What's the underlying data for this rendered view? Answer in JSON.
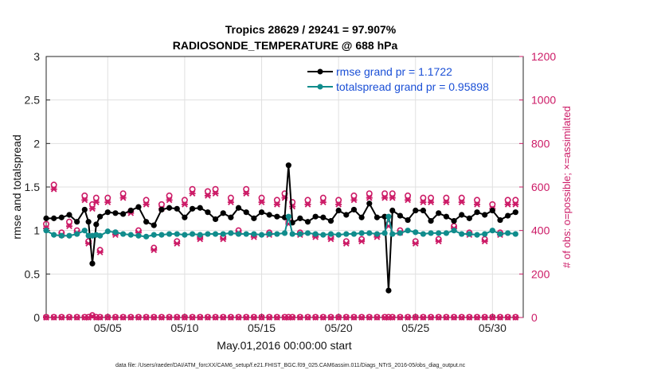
{
  "chart_data": {
    "type": "line",
    "title": "Tropics 28629 / 29241 = 97.907%",
    "subtitle": "RADIOSONDE_TEMPERATURE @ 688 hPa",
    "xlabel": "May.01,2016 00:00:00 start",
    "ylabel_left": "rmse and totalspread",
    "ylabel_right": "# of obs: o=possible; ×=assimilated",
    "xlim": [
      1,
      32
    ],
    "ylim_left": [
      0,
      3
    ],
    "ylim_right": [
      0,
      1200
    ],
    "x_ticks": [
      5,
      10,
      15,
      20,
      25,
      30
    ],
    "x_tick_labels": [
      "05/05",
      "05/10",
      "05/15",
      "05/20",
      "05/25",
      "05/30"
    ],
    "y_left_ticks": [
      0,
      0.5,
      1,
      1.5,
      2,
      2.5,
      3
    ],
    "y_left_tick_labels": [
      "0",
      "0.5",
      "1",
      "1.5",
      "2",
      "2.5",
      "3"
    ],
    "y_right_ticks": [
      0,
      200,
      400,
      600,
      800,
      1000,
      1200
    ],
    "y_right_tick_labels": [
      "0",
      "200",
      "400",
      "600",
      "800",
      "1000",
      "1200"
    ],
    "grid": true,
    "legend": {
      "placement": "top-right",
      "entries": [
        "rmse grand pr = 1.1722",
        "totalspread grand pr = 0.95898"
      ]
    },
    "colors": {
      "rmse": "#000000",
      "spread": "#108c8c",
      "obs": "#cc1a66",
      "grid": "#e0e0e0"
    },
    "footnote": "data file: /Users/raeder/DAI/ATM_forcXX/CAM6_setup/f.e21.FHIST_BGC.f09_025.CAM6assim.011/Diags_NTrS_2016-05/obs_diag_output.nc",
    "series": [
      {
        "name": "rmse grand pr = 1.1722",
        "axis": "left",
        "color": "#000000",
        "marker": "circle",
        "x": [
          1.0,
          1.5,
          2.0,
          2.5,
          3.0,
          3.5,
          3.75,
          4.0,
          4.25,
          4.5,
          5.0,
          5.5,
          6.0,
          6.5,
          7.0,
          7.5,
          8.0,
          8.5,
          9.0,
          9.5,
          10.0,
          10.5,
          11.0,
          11.5,
          12.0,
          12.5,
          13.0,
          13.5,
          14.0,
          14.5,
          15.0,
          15.5,
          16.0,
          16.5,
          16.75,
          17.0,
          17.5,
          18.0,
          18.5,
          19.0,
          19.5,
          20.0,
          20.5,
          21.0,
          21.5,
          22.0,
          22.5,
          23.0,
          23.25,
          23.5,
          24.0,
          24.5,
          25.0,
          25.5,
          26.0,
          26.5,
          27.0,
          27.5,
          28.0,
          28.5,
          29.0,
          29.5,
          30.0,
          30.5,
          31.0,
          31.5
        ],
        "values": [
          1.14,
          1.14,
          1.15,
          1.18,
          1.1,
          1.24,
          1.1,
          0.62,
          1.07,
          1.16,
          1.21,
          1.2,
          1.19,
          1.23,
          1.27,
          1.1,
          1.06,
          1.24,
          1.26,
          1.25,
          1.15,
          1.25,
          1.26,
          1.21,
          1.13,
          1.2,
          1.15,
          1.26,
          1.21,
          1.14,
          1.21,
          1.18,
          1.16,
          1.15,
          1.75,
          1.09,
          1.14,
          1.1,
          1.16,
          1.15,
          1.11,
          1.23,
          1.18,
          1.24,
          1.15,
          1.31,
          1.15,
          1.16,
          0.31,
          1.23,
          1.17,
          1.12,
          1.23,
          1.23,
          1.11,
          1.2,
          1.16,
          1.11,
          1.18,
          1.14,
          1.21,
          1.18,
          1.23,
          1.12,
          1.17,
          1.21
        ]
      },
      {
        "name": "totalspread grand pr = 0.95898",
        "axis": "left",
        "color": "#108c8c",
        "marker": "circle",
        "x": [
          1.0,
          1.5,
          2.0,
          2.5,
          3.0,
          3.5,
          3.75,
          4.0,
          4.25,
          4.5,
          5.0,
          5.5,
          6.0,
          6.5,
          7.0,
          7.5,
          8.0,
          8.5,
          9.0,
          9.5,
          10.0,
          10.5,
          11.0,
          11.5,
          12.0,
          12.5,
          13.0,
          13.5,
          14.0,
          14.5,
          15.0,
          15.5,
          16.0,
          16.5,
          16.75,
          17.0,
          17.5,
          18.0,
          18.5,
          19.0,
          19.5,
          20.0,
          20.5,
          21.0,
          21.5,
          22.0,
          22.5,
          23.0,
          23.25,
          23.5,
          24.0,
          24.5,
          25.0,
          25.5,
          26.0,
          26.5,
          27.0,
          27.5,
          28.0,
          28.5,
          29.0,
          29.5,
          30.0,
          30.5,
          31.0,
          31.5
        ],
        "values": [
          1.0,
          0.95,
          0.94,
          0.94,
          0.96,
          1.0,
          0.94,
          0.94,
          0.95,
          0.94,
          0.99,
          0.98,
          0.96,
          0.95,
          0.94,
          0.93,
          0.95,
          0.95,
          0.96,
          0.96,
          0.95,
          0.96,
          0.95,
          0.96,
          0.96,
          0.96,
          0.97,
          0.96,
          0.96,
          0.96,
          0.95,
          0.96,
          0.96,
          0.97,
          1.16,
          0.96,
          0.96,
          0.97,
          0.96,
          0.95,
          0.96,
          0.95,
          0.96,
          0.96,
          0.97,
          0.97,
          0.96,
          0.97,
          1.16,
          0.96,
          0.97,
          1.0,
          0.98,
          0.96,
          0.97,
          0.97,
          0.97,
          1.0,
          0.96,
          0.96,
          0.95,
          0.96,
          1.0,
          0.96,
          0.97,
          0.96
        ]
      },
      {
        "name": "obs possible",
        "axis": "right",
        "color": "#cc1a66",
        "marker": "o",
        "x": [
          1.0,
          1.5,
          2.0,
          2.5,
          3.0,
          3.5,
          3.75,
          4.0,
          4.25,
          4.5,
          5.0,
          5.5,
          6.0,
          6.5,
          7.0,
          7.5,
          8.0,
          8.5,
          9.0,
          9.5,
          10.0,
          10.5,
          11.0,
          11.5,
          12.0,
          12.5,
          13.0,
          13.5,
          14.0,
          14.5,
          15.0,
          15.5,
          16.0,
          16.5,
          16.75,
          17.0,
          17.5,
          18.0,
          18.5,
          19.0,
          19.5,
          20.0,
          20.5,
          21.0,
          21.5,
          22.0,
          22.5,
          23.0,
          23.25,
          23.5,
          24.0,
          24.5,
          25.0,
          25.5,
          26.0,
          26.5,
          27.0,
          27.5,
          28.0,
          28.5,
          29.0,
          29.5,
          30.0,
          30.5,
          31.0,
          31.5
        ],
        "values": [
          430,
          610,
          390,
          440,
          400,
          560,
          350,
          520,
          550,
          310,
          550,
          390,
          570,
          490,
          400,
          540,
          320,
          520,
          560,
          350,
          540,
          590,
          370,
          580,
          590,
          370,
          550,
          400,
          590,
          380,
          550,
          390,
          540,
          570,
          440,
          530,
          390,
          540,
          380,
          550,
          370,
          540,
          350,
          560,
          360,
          570,
          380,
          570,
          430,
          570,
          400,
          560,
          350,
          550,
          550,
          360,
          550,
          420,
          550,
          390,
          540,
          360,
          520,
          390,
          540,
          540
        ]
      },
      {
        "name": "obs assimilated",
        "axis": "right",
        "color": "#cc1a66",
        "marker": "x",
        "x": [
          1.0,
          1.5,
          2.0,
          2.5,
          3.0,
          3.5,
          3.75,
          4.0,
          4.25,
          4.5,
          5.0,
          5.5,
          6.0,
          6.5,
          7.0,
          7.5,
          8.0,
          8.5,
          9.0,
          9.5,
          10.0,
          10.5,
          11.0,
          11.5,
          12.0,
          12.5,
          13.0,
          13.5,
          14.0,
          14.5,
          15.0,
          15.5,
          16.0,
          16.5,
          16.75,
          17.0,
          17.5,
          18.0,
          18.5,
          19.0,
          19.5,
          20.0,
          20.5,
          21.0,
          21.5,
          22.0,
          22.5,
          23.0,
          23.25,
          23.5,
          24.0,
          24.5,
          25.0,
          25.5,
          26.0,
          26.5,
          27.0,
          27.5,
          28.0,
          28.5,
          29.0,
          29.5,
          30.0,
          30.5,
          31.0,
          31.5
        ],
        "values": [
          410,
          590,
          380,
          420,
          390,
          540,
          340,
          500,
          530,
          300,
          530,
          380,
          550,
          480,
          390,
          520,
          310,
          500,
          540,
          340,
          520,
          570,
          360,
          560,
          570,
          360,
          530,
          390,
          570,
          370,
          530,
          380,
          520,
          550,
          430,
          510,
          380,
          520,
          370,
          530,
          360,
          520,
          340,
          540,
          350,
          550,
          370,
          550,
          420,
          550,
          390,
          540,
          340,
          530,
          530,
          350,
          530,
          410,
          530,
          380,
          520,
          350,
          500,
          380,
          520,
          520
        ]
      },
      {
        "name": "obs baseline possible",
        "axis": "right",
        "color": "#cc1a66",
        "marker": "o",
        "x": [
          1.0,
          1.5,
          2.0,
          2.5,
          3.0,
          3.5,
          3.75,
          4.0,
          4.25,
          4.5,
          5.0,
          5.5,
          6.0,
          6.5,
          7.0,
          7.5,
          8.0,
          8.5,
          9.0,
          9.5,
          10.0,
          10.5,
          11.0,
          11.5,
          12.0,
          12.5,
          13.0,
          13.5,
          14.0,
          14.5,
          15.0,
          15.5,
          16.0,
          16.5,
          16.75,
          17.0,
          17.5,
          18.0,
          18.5,
          19.0,
          19.5,
          20.0,
          20.5,
          21.0,
          21.5,
          22.0,
          22.5,
          23.0,
          23.25,
          23.5,
          24.0,
          24.5,
          25.0,
          25.5,
          26.0,
          26.5,
          27.0,
          27.5,
          28.0,
          28.5,
          29.0,
          29.5,
          30.0,
          30.5,
          31.0,
          31.5
        ],
        "values": [
          2,
          2,
          2,
          2,
          2,
          2,
          2,
          10,
          2,
          2,
          2,
          2,
          2,
          2,
          2,
          2,
          2,
          2,
          2,
          2,
          2,
          2,
          2,
          2,
          2,
          2,
          2,
          2,
          2,
          2,
          2,
          2,
          2,
          2,
          2,
          2,
          2,
          2,
          2,
          2,
          2,
          2,
          2,
          2,
          2,
          2,
          2,
          2,
          2,
          2,
          2,
          2,
          2,
          2,
          2,
          2,
          2,
          2,
          2,
          2,
          2,
          2,
          2,
          2,
          2,
          2
        ]
      },
      {
        "name": "obs baseline assimilated",
        "axis": "right",
        "color": "#cc1a66",
        "marker": "x",
        "x": [
          1.0,
          1.5,
          2.0,
          2.5,
          3.0,
          3.5,
          3.75,
          4.0,
          4.25,
          4.5,
          5.0,
          5.5,
          6.0,
          6.5,
          7.0,
          7.5,
          8.0,
          8.5,
          9.0,
          9.5,
          10.0,
          10.5,
          11.0,
          11.5,
          12.0,
          12.5,
          13.0,
          13.5,
          14.0,
          14.5,
          15.0,
          15.5,
          16.0,
          16.5,
          16.75,
          17.0,
          17.5,
          18.0,
          18.5,
          19.0,
          19.5,
          20.0,
          20.5,
          21.0,
          21.5,
          22.0,
          22.5,
          23.0,
          23.25,
          23.5,
          24.0,
          24.5,
          25.0,
          25.5,
          26.0,
          26.5,
          27.0,
          27.5,
          28.0,
          28.5,
          29.0,
          29.5,
          30.0,
          30.5,
          31.0,
          31.5
        ],
        "values": [
          0,
          0,
          0,
          0,
          0,
          0,
          0,
          6,
          0,
          0,
          0,
          0,
          0,
          0,
          0,
          0,
          0,
          0,
          0,
          0,
          0,
          0,
          0,
          0,
          0,
          0,
          0,
          0,
          0,
          0,
          0,
          0,
          0,
          0,
          0,
          0,
          0,
          0,
          0,
          0,
          0,
          0,
          0,
          0,
          0,
          0,
          0,
          0,
          0,
          0,
          0,
          0,
          0,
          0,
          0,
          0,
          0,
          0,
          0,
          0,
          0,
          0,
          0,
          0,
          0,
          0
        ]
      }
    ]
  }
}
